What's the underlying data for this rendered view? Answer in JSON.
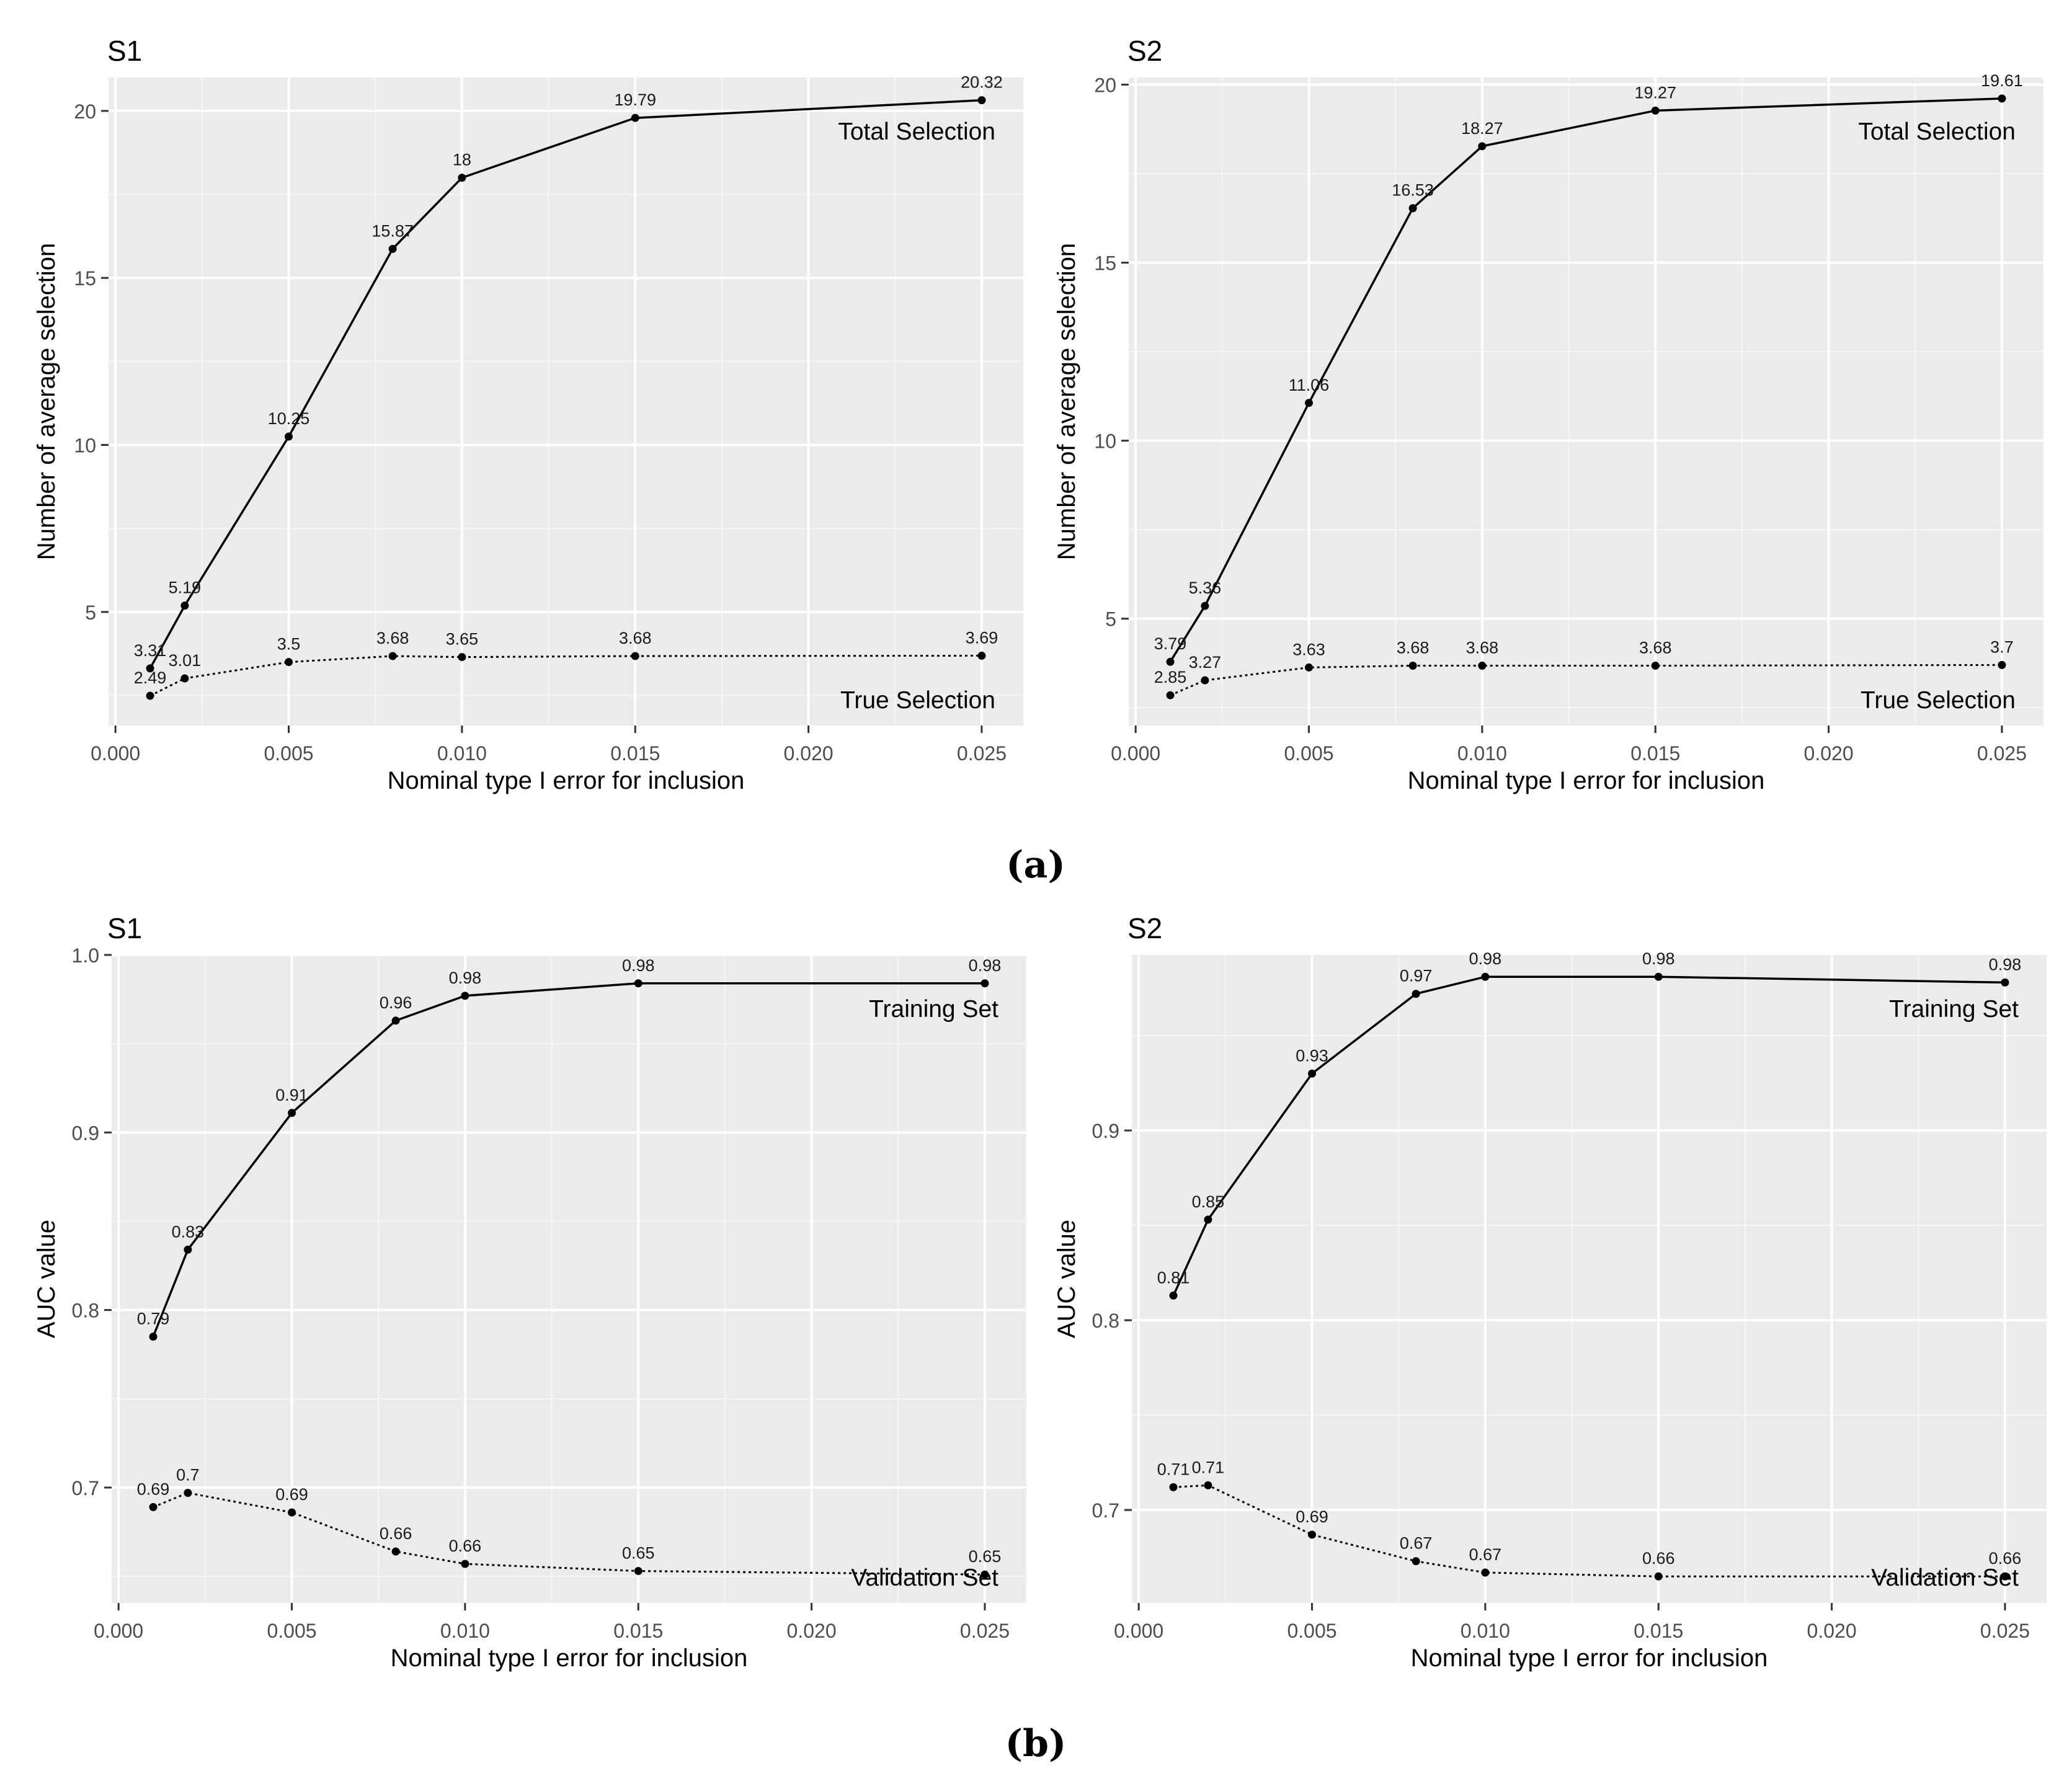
{
  "figure": {
    "row_labels": {
      "a": "(a)",
      "b": "(b)"
    }
  },
  "chart_data": [
    {
      "type": "line",
      "title": "S1",
      "xlabel": "Nominal type I error for inclusion",
      "ylabel": "Number of average selection",
      "x": [
        0.001,
        0.002,
        0.005,
        0.008,
        0.01,
        0.015,
        0.025
      ],
      "xlim": [
        -0.0002,
        0.0262
      ],
      "ylim": [
        1.6,
        21.0
      ],
      "xticks": [
        0.0,
        0.005,
        0.01,
        0.015,
        0.02,
        0.025
      ],
      "xtick_labels": [
        "0.000",
        "0.005",
        "0.010",
        "0.015",
        "0.020",
        "0.025"
      ],
      "yticks": [
        5,
        10,
        15,
        20
      ],
      "ytick_labels": [
        "5",
        "10",
        "15",
        "20"
      ],
      "grid": true,
      "series": [
        {
          "name": "Total Selection",
          "linestyle": "solid",
          "values": [
            3.31,
            5.19,
            10.25,
            15.87,
            18.0,
            19.79,
            20.32
          ],
          "labels": [
            "3.31",
            "5.19",
            "10.25",
            "15.87",
            "18",
            "19.79",
            "20.32"
          ]
        },
        {
          "name": "True Selection",
          "linestyle": "dotted",
          "values": [
            2.49,
            3.01,
            3.5,
            3.68,
            3.65,
            3.68,
            3.69
          ],
          "labels": [
            "2.49",
            "3.01",
            "3.5",
            "3.68",
            "3.65",
            "3.68",
            "3.69"
          ]
        }
      ],
      "annotations": [
        "Total Selection",
        "True Selection"
      ]
    },
    {
      "type": "line",
      "title": "S2",
      "xlabel": "Nominal type I error for inclusion",
      "ylabel": "Number of average selection",
      "x": [
        0.001,
        0.002,
        0.005,
        0.008,
        0.01,
        0.015,
        0.025
      ],
      "xlim": [
        -0.0002,
        0.0262
      ],
      "ylim": [
        2.0,
        20.2
      ],
      "xticks": [
        0.0,
        0.005,
        0.01,
        0.015,
        0.02,
        0.025
      ],
      "xtick_labels": [
        "0.000",
        "0.005",
        "0.010",
        "0.015",
        "0.020",
        "0.025"
      ],
      "yticks": [
        5,
        10,
        15,
        20
      ],
      "ytick_labels": [
        "5",
        "10",
        "15",
        "20"
      ],
      "grid": true,
      "series": [
        {
          "name": "Total Selection",
          "linestyle": "solid",
          "values": [
            3.79,
            5.36,
            11.06,
            16.53,
            18.27,
            19.27,
            19.61
          ],
          "labels": [
            "3.79",
            "5.36",
            "11.06",
            "16.53",
            "18.27",
            "19.27",
            "19.61"
          ]
        },
        {
          "name": "True Selection",
          "linestyle": "dotted",
          "values": [
            2.85,
            3.27,
            3.63,
            3.68,
            3.68,
            3.68,
            3.7
          ],
          "labels": [
            "2.85",
            "3.27",
            "3.63",
            "3.68",
            "3.68",
            "3.68",
            "3.7"
          ]
        }
      ],
      "annotations": [
        "Total Selection",
        "True Selection"
      ]
    },
    {
      "type": "line",
      "title": "S1",
      "xlabel": "Nominal type I error for inclusion",
      "ylabel": "AUC value",
      "x": [
        0.001,
        0.002,
        0.005,
        0.008,
        0.01,
        0.015,
        0.025
      ],
      "xlim": [
        -0.0002,
        0.0262
      ],
      "ylim": [
        0.635,
        1.0
      ],
      "xticks": [
        0.0,
        0.005,
        0.01,
        0.015,
        0.02,
        0.025
      ],
      "xtick_labels": [
        "0.000",
        "0.005",
        "0.010",
        "0.015",
        "0.020",
        "0.025"
      ],
      "yticks": [
        0.7,
        0.8,
        0.9,
        1.0
      ],
      "ytick_labels": [
        "0.7",
        "0.8",
        "0.9",
        "1.0"
      ],
      "grid": true,
      "series": [
        {
          "name": "Training Set",
          "linestyle": "solid",
          "values": [
            0.785,
            0.834,
            0.911,
            0.963,
            0.977,
            0.984,
            0.984
          ],
          "labels": [
            "0.79",
            "0.83",
            "0.91",
            "0.96",
            "0.98",
            "0.98",
            "0.98"
          ]
        },
        {
          "name": "Validation Set",
          "linestyle": "dotted",
          "values": [
            0.689,
            0.697,
            0.686,
            0.664,
            0.657,
            0.653,
            0.651
          ],
          "labels": [
            "0.69",
            "0.7",
            "0.69",
            "0.66",
            "0.66",
            "0.65",
            "0.65"
          ]
        }
      ],
      "annotations": [
        "Training Set",
        "Validation Set"
      ]
    },
    {
      "type": "line",
      "title": "S2",
      "xlabel": "Nominal type I error for inclusion",
      "ylabel": "AUC value",
      "x": [
        0.001,
        0.002,
        0.005,
        0.008,
        0.01,
        0.015,
        0.025
      ],
      "xlim": [
        -0.0002,
        0.0262
      ],
      "ylim": [
        0.651,
        0.9925
      ],
      "xticks": [
        0.0,
        0.005,
        0.01,
        0.015,
        0.02,
        0.025
      ],
      "xtick_labels": [
        "0.000",
        "0.005",
        "0.010",
        "0.015",
        "0.020",
        "0.025"
      ],
      "yticks": [
        0.7,
        0.8,
        0.9
      ],
      "ytick_labels": [
        "0.7",
        "0.8",
        "0.9"
      ],
      "grid": true,
      "series": [
        {
          "name": "Training Set",
          "linestyle": "solid",
          "values": [
            0.813,
            0.853,
            0.93,
            0.972,
            0.981,
            0.981,
            0.978
          ],
          "labels": [
            "0.81",
            "0.85",
            "0.93",
            "0.97",
            "0.98",
            "0.98",
            "0.98"
          ]
        },
        {
          "name": "Validation Set",
          "linestyle": "dotted",
          "values": [
            0.712,
            0.713,
            0.687,
            0.673,
            0.667,
            0.665,
            0.665
          ],
          "labels": [
            "0.71",
            "0.71",
            "0.69",
            "0.67",
            "0.67",
            "0.66",
            "0.66"
          ]
        }
      ],
      "annotations": [
        "Training Set",
        "Validation Set"
      ]
    }
  ]
}
